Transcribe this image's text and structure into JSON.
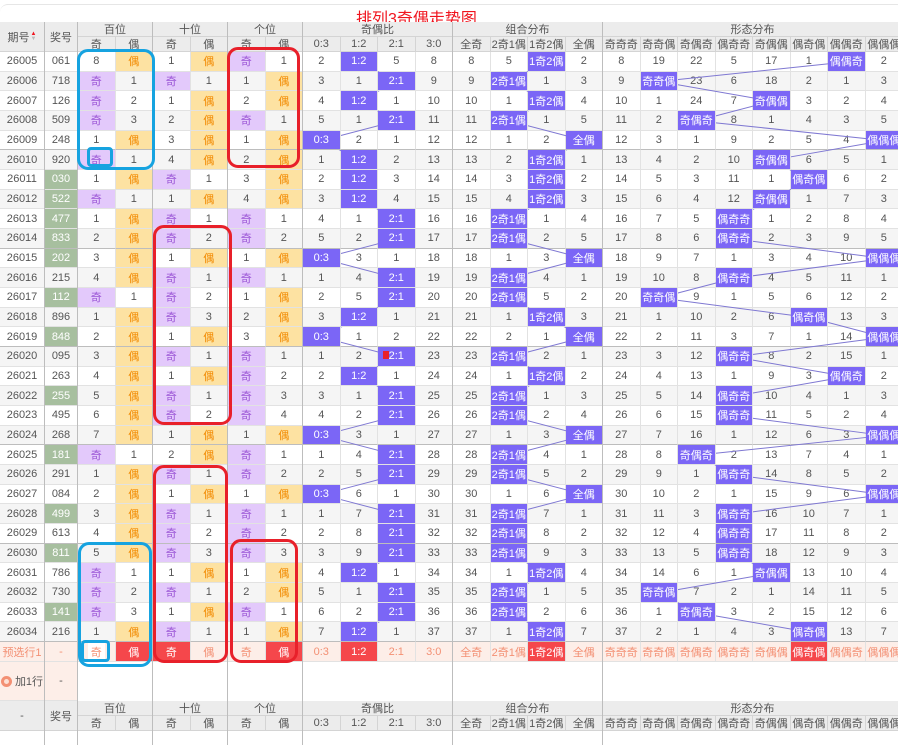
{
  "title": "排列3奇偶走势图",
  "header": {
    "issue": "期号",
    "number": "奖号",
    "groups": [
      {
        "label": "百位",
        "span": 2
      },
      {
        "label": "十位",
        "span": 2
      },
      {
        "label": "个位",
        "span": 2
      },
      {
        "label": "奇偶比",
        "span": 4
      },
      {
        "label": "组合分布",
        "span": 4
      },
      {
        "label": "形态分布",
        "span": 8
      }
    ],
    "sub": [
      "奇",
      "偶",
      "奇",
      "偶",
      "奇",
      "偶",
      "0:3",
      "1:2",
      "2:1",
      "3:0",
      "全奇",
      "2奇1偶",
      "1奇2偶",
      "全偶",
      "奇奇奇",
      "奇奇偶",
      "奇偶奇",
      "偶奇奇",
      "奇偶偶",
      "偶奇偶",
      "偶偶奇",
      "偶偶偶"
    ]
  },
  "rows": [
    {
      "id": "26005",
      "num": "061",
      "hl": false,
      "c": [
        "8",
        "偶",
        "1",
        "偶",
        "奇",
        "1",
        "2",
        "1:2",
        "5",
        "8",
        "8",
        "5",
        "1奇2偶",
        "2",
        "8",
        "19",
        "22",
        "5",
        "17",
        "1",
        "偶偶奇",
        "2"
      ]
    },
    {
      "id": "26006",
      "num": "718",
      "hl": false,
      "c": [
        "奇",
        "1",
        "奇",
        "1",
        "1",
        "偶",
        "3",
        "1",
        "2:1",
        "9",
        "9",
        "2奇1偶",
        "1",
        "3",
        "9",
        "奇奇偶",
        "23",
        "6",
        "18",
        "2",
        "1",
        "3"
      ]
    },
    {
      "id": "26007",
      "num": "126",
      "hl": false,
      "c": [
        "奇",
        "2",
        "1",
        "偶",
        "2",
        "偶",
        "4",
        "1:2",
        "1",
        "10",
        "10",
        "1",
        "1奇2偶",
        "4",
        "10",
        "1",
        "24",
        "7",
        "奇偶偶",
        "3",
        "2",
        "4"
      ]
    },
    {
      "id": "26008",
      "num": "509",
      "hl": false,
      "c": [
        "奇",
        "3",
        "2",
        "偶",
        "奇",
        "1",
        "5",
        "1",
        "2:1",
        "11",
        "11",
        "2奇1偶",
        "1",
        "5",
        "11",
        "2",
        "奇偶奇",
        "8",
        "1",
        "4",
        "3",
        "5"
      ]
    },
    {
      "id": "26009",
      "num": "248",
      "hl": false,
      "c": [
        "1",
        "偶",
        "3",
        "偶",
        "1",
        "偶",
        "0:3",
        "2",
        "1",
        "12",
        "12",
        "1",
        "2",
        "全偶",
        "12",
        "3",
        "1",
        "9",
        "2",
        "5",
        "4",
        "偶偶偶"
      ]
    },
    {
      "id": "26010",
      "num": "920",
      "hl": false,
      "c": [
        "奇",
        "1",
        "4",
        "偶",
        "2",
        "偶",
        "1",
        "1:2",
        "2",
        "13",
        "13",
        "2",
        "1奇2偶",
        "1",
        "13",
        "4",
        "2",
        "10",
        "奇偶偶",
        "6",
        "5",
        "1"
      ]
    },
    {
      "id": "26011",
      "num": "030",
      "hl": true,
      "c": [
        "1",
        "偶",
        "奇",
        "1",
        "3",
        "偶",
        "2",
        "1:2",
        "3",
        "14",
        "14",
        "3",
        "1奇2偶",
        "2",
        "14",
        "5",
        "3",
        "11",
        "1",
        "偶奇偶",
        "6",
        "2"
      ]
    },
    {
      "id": "26012",
      "num": "522",
      "hl": true,
      "c": [
        "奇",
        "1",
        "1",
        "偶",
        "4",
        "偶",
        "3",
        "1:2",
        "4",
        "15",
        "15",
        "4",
        "1奇2偶",
        "3",
        "15",
        "6",
        "4",
        "12",
        "奇偶偶",
        "1",
        "7",
        "3"
      ]
    },
    {
      "id": "26013",
      "num": "477",
      "hl": true,
      "c": [
        "1",
        "偶",
        "奇",
        "1",
        "奇",
        "1",
        "4",
        "1",
        "2:1",
        "16",
        "16",
        "2奇1偶",
        "1",
        "4",
        "16",
        "7",
        "5",
        "偶奇奇",
        "1",
        "2",
        "8",
        "4"
      ]
    },
    {
      "id": "26014",
      "num": "833",
      "hl": true,
      "c": [
        "2",
        "偶",
        "奇",
        "2",
        "奇",
        "2",
        "5",
        "2",
        "2:1",
        "17",
        "17",
        "2奇1偶",
        "2",
        "5",
        "17",
        "8",
        "6",
        "偶奇奇",
        "2",
        "3",
        "9",
        "5"
      ]
    },
    {
      "id": "26015",
      "num": "202",
      "hl": true,
      "c": [
        "3",
        "偶",
        "1",
        "偶",
        "1",
        "偶",
        "0:3",
        "3",
        "1",
        "18",
        "18",
        "1",
        "3",
        "全偶",
        "18",
        "9",
        "7",
        "1",
        "3",
        "4",
        "10",
        "偶偶偶"
      ]
    },
    {
      "id": "26016",
      "num": "215",
      "hl": false,
      "c": [
        "4",
        "偶",
        "奇",
        "1",
        "奇",
        "1",
        "1",
        "4",
        "2:1",
        "19",
        "19",
        "2奇1偶",
        "4",
        "1",
        "19",
        "10",
        "8",
        "偶奇奇",
        "4",
        "5",
        "11",
        "1"
      ]
    },
    {
      "id": "26017",
      "num": "112",
      "hl": true,
      "c": [
        "奇",
        "1",
        "奇",
        "2",
        "1",
        "偶",
        "2",
        "5",
        "2:1",
        "20",
        "20",
        "2奇1偶",
        "5",
        "2",
        "20",
        "奇奇偶",
        "9",
        "1",
        "5",
        "6",
        "12",
        "2"
      ]
    },
    {
      "id": "26018",
      "num": "896",
      "hl": false,
      "c": [
        "1",
        "偶",
        "奇",
        "3",
        "2",
        "偶",
        "3",
        "1:2",
        "1",
        "21",
        "21",
        "1",
        "1奇2偶",
        "3",
        "21",
        "1",
        "10",
        "2",
        "6",
        "偶奇偶",
        "13",
        "3"
      ]
    },
    {
      "id": "26019",
      "num": "848",
      "hl": true,
      "c": [
        "2",
        "偶",
        "1",
        "偶",
        "3",
        "偶",
        "0:3",
        "1",
        "2",
        "22",
        "22",
        "2",
        "1",
        "全偶",
        "22",
        "2",
        "11",
        "3",
        "7",
        "1",
        "14",
        "偶偶偶"
      ]
    },
    {
      "id": "26020",
      "num": "095",
      "hl": false,
      "c": [
        "3",
        "偶",
        "奇",
        "1",
        "奇",
        "1",
        "1",
        "2",
        "2:1",
        "23",
        "23",
        "2奇1偶",
        "2",
        "1",
        "23",
        "3",
        "12",
        "偶奇奇",
        "8",
        "2",
        "15",
        "1"
      ]
    },
    {
      "id": "26021",
      "num": "263",
      "hl": false,
      "c": [
        "4",
        "偶",
        "1",
        "偶",
        "奇",
        "2",
        "2",
        "1:2",
        "1",
        "24",
        "24",
        "1",
        "1奇2偶",
        "2",
        "24",
        "4",
        "13",
        "1",
        "9",
        "3",
        "偶偶奇",
        "2"
      ]
    },
    {
      "id": "26022",
      "num": "255",
      "hl": true,
      "c": [
        "5",
        "偶",
        "奇",
        "1",
        "奇",
        "3",
        "3",
        "1",
        "2:1",
        "25",
        "25",
        "2奇1偶",
        "1",
        "3",
        "25",
        "5",
        "14",
        "偶奇奇",
        "10",
        "4",
        "1",
        "3"
      ]
    },
    {
      "id": "26023",
      "num": "495",
      "hl": false,
      "c": [
        "6",
        "偶",
        "奇",
        "2",
        "奇",
        "4",
        "4",
        "2",
        "2:1",
        "26",
        "26",
        "2奇1偶",
        "2",
        "4",
        "26",
        "6",
        "15",
        "偶奇奇",
        "11",
        "5",
        "2",
        "4"
      ]
    },
    {
      "id": "26024",
      "num": "268",
      "hl": false,
      "c": [
        "7",
        "偶",
        "1",
        "偶",
        "1",
        "偶",
        "0:3",
        "3",
        "1",
        "27",
        "27",
        "1",
        "3",
        "全偶",
        "27",
        "7",
        "16",
        "1",
        "12",
        "6",
        "3",
        "偶偶偶"
      ]
    },
    {
      "id": "26025",
      "num": "181",
      "hl": true,
      "c": [
        "奇",
        "1",
        "2",
        "偶",
        "奇",
        "1",
        "1",
        "4",
        "2:1",
        "28",
        "28",
        "2奇1偶",
        "4",
        "1",
        "28",
        "8",
        "奇偶奇",
        "2",
        "13",
        "7",
        "4",
        "1"
      ]
    },
    {
      "id": "26026",
      "num": "291",
      "hl": false,
      "c": [
        "1",
        "偶",
        "奇",
        "1",
        "奇",
        "2",
        "2",
        "5",
        "2:1",
        "29",
        "29",
        "2奇1偶",
        "5",
        "2",
        "29",
        "9",
        "1",
        "偶奇奇",
        "14",
        "8",
        "5",
        "2"
      ]
    },
    {
      "id": "26027",
      "num": "084",
      "hl": false,
      "c": [
        "2",
        "偶",
        "1",
        "偶",
        "1",
        "偶",
        "0:3",
        "6",
        "1",
        "30",
        "30",
        "1",
        "6",
        "全偶",
        "30",
        "10",
        "2",
        "1",
        "15",
        "9",
        "6",
        "偶偶偶"
      ]
    },
    {
      "id": "26028",
      "num": "499",
      "hl": true,
      "c": [
        "3",
        "偶",
        "奇",
        "1",
        "奇",
        "1",
        "1",
        "7",
        "2:1",
        "31",
        "31",
        "2奇1偶",
        "7",
        "1",
        "31",
        "11",
        "3",
        "偶奇奇",
        "16",
        "10",
        "7",
        "1"
      ]
    },
    {
      "id": "26029",
      "num": "613",
      "hl": false,
      "c": [
        "4",
        "偶",
        "奇",
        "2",
        "奇",
        "2",
        "2",
        "8",
        "2:1",
        "32",
        "32",
        "2奇1偶",
        "8",
        "2",
        "32",
        "12",
        "4",
        "偶奇奇",
        "17",
        "11",
        "8",
        "2"
      ]
    },
    {
      "id": "26030",
      "num": "811",
      "hl": true,
      "c": [
        "5",
        "偶",
        "奇",
        "3",
        "奇",
        "3",
        "3",
        "9",
        "2:1",
        "33",
        "33",
        "2奇1偶",
        "9",
        "3",
        "33",
        "13",
        "5",
        "偶奇奇",
        "18",
        "12",
        "9",
        "3"
      ]
    },
    {
      "id": "26031",
      "num": "786",
      "hl": false,
      "c": [
        "奇",
        "1",
        "1",
        "偶",
        "1",
        "偶",
        "4",
        "1:2",
        "1",
        "34",
        "34",
        "1",
        "1奇2偶",
        "4",
        "34",
        "14",
        "6",
        "1",
        "奇偶偶",
        "13",
        "10",
        "4"
      ]
    },
    {
      "id": "26032",
      "num": "730",
      "hl": false,
      "c": [
        "奇",
        "2",
        "奇",
        "1",
        "2",
        "偶",
        "5",
        "1",
        "2:1",
        "35",
        "35",
        "2奇1偶",
        "1",
        "5",
        "35",
        "奇奇偶",
        "7",
        "2",
        "1",
        "14",
        "11",
        "5"
      ]
    },
    {
      "id": "26033",
      "num": "141",
      "hl": true,
      "c": [
        "奇",
        "3",
        "1",
        "偶",
        "奇",
        "1",
        "6",
        "2",
        "2:1",
        "36",
        "36",
        "2奇1偶",
        "2",
        "6",
        "36",
        "1",
        "奇偶奇",
        "3",
        "2",
        "15",
        "12",
        "6"
      ]
    },
    {
      "id": "26034",
      "num": "216",
      "hl": false,
      "c": [
        "1",
        "偶",
        "奇",
        "1",
        "1",
        "偶",
        "7",
        "1:2",
        "1",
        "37",
        "37",
        "1",
        "1奇2偶",
        "7",
        "37",
        "2",
        "1",
        "4",
        "3",
        "偶奇偶",
        "13",
        "7"
      ]
    }
  ],
  "preselect": {
    "label": "预选行1",
    "number": "-",
    "cells": [
      "奇",
      "偶",
      "奇",
      "偶",
      "奇",
      "偶",
      "0:3",
      "1:2",
      "2:1",
      "3:0",
      "全奇",
      "2奇1偶",
      "1奇2偶",
      "全偶",
      "奇奇奇",
      "奇奇偶",
      "奇偶奇",
      "偶奇奇",
      "奇偶偶",
      "偶奇偶",
      "偶偶奇",
      "偶偶偶"
    ],
    "selected": [
      1,
      2,
      5,
      7,
      12,
      19
    ]
  },
  "add_row": {
    "label": "加1行",
    "number": "-"
  },
  "footer": {
    "issue": "-",
    "number": "奖号"
  },
  "colors": {
    "title": "#f0141e",
    "hit_purple": "#7b66f6",
    "odd_hit": "#e3c9fb",
    "even_hit": "#fde2a2",
    "highlight_number": "#a7bf9f",
    "preselect_selected": "#f5474b"
  }
}
